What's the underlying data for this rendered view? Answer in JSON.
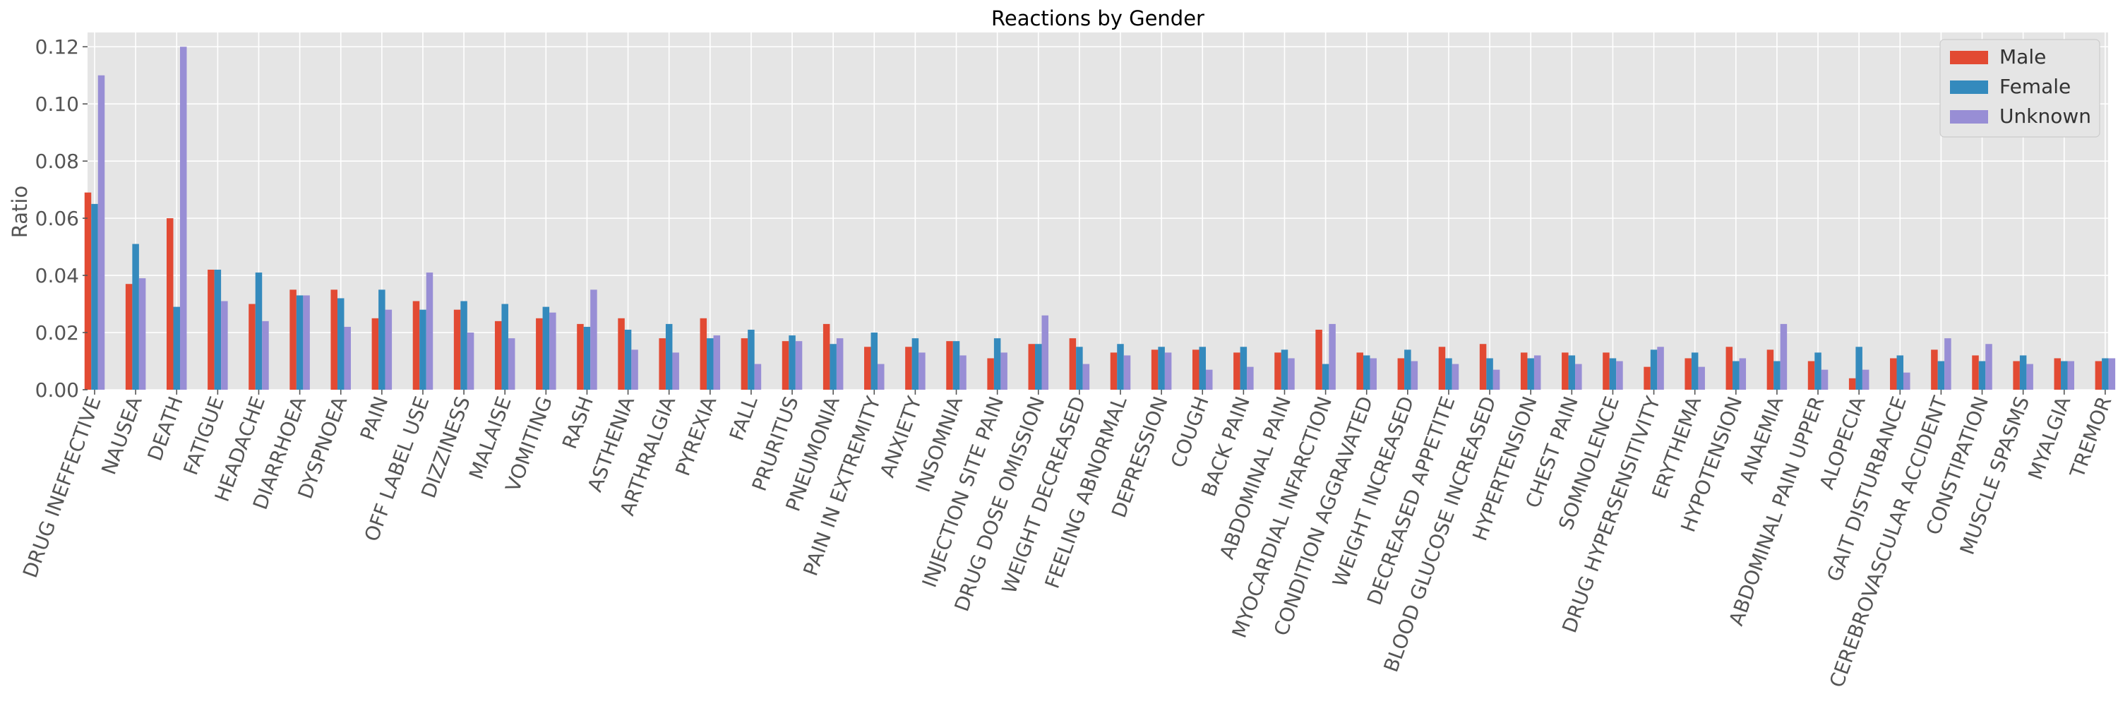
{
  "chart_data": {
    "type": "bar",
    "title": "Reactions by Gender",
    "xlabel": "",
    "ylabel": "Ratio",
    "ylim": [
      0,
      0.125
    ],
    "yticks": [
      0.0,
      0.02,
      0.04,
      0.06,
      0.08,
      0.1,
      0.12
    ],
    "ytick_labels": [
      "0.00",
      "0.02",
      "0.04",
      "0.06",
      "0.08",
      "0.10",
      "0.12"
    ],
    "grid": true,
    "legend_position": "top-right",
    "categories": [
      "DRUG INEFFECTIVE",
      "NAUSEA",
      "DEATH",
      "FATIGUE",
      "HEADACHE",
      "DIARRHOEA",
      "DYSPNOEA",
      "PAIN",
      "OFF LABEL USE",
      "DIZZINESS",
      "MALAISE",
      "VOMITING",
      "RASH",
      "ASTHENIA",
      "ARTHRALGIA",
      "PYREXIA",
      "FALL",
      "PRURITUS",
      "PNEUMONIA",
      "PAIN IN EXTREMITY",
      "ANXIETY",
      "INSOMNIA",
      "INJECTION SITE PAIN",
      "DRUG DOSE OMISSION",
      "WEIGHT DECREASED",
      "FEELING ABNORMAL",
      "DEPRESSION",
      "COUGH",
      "BACK PAIN",
      "ABDOMINAL PAIN",
      "MYOCARDIAL INFARCTION",
      "CONDITION AGGRAVATED",
      "WEIGHT INCREASED",
      "DECREASED APPETITE",
      "BLOOD GLUCOSE INCREASED",
      "HYPERTENSION",
      "CHEST PAIN",
      "SOMNOLENCE",
      "DRUG HYPERSENSITIVITY",
      "ERYTHEMA",
      "HYPOTENSION",
      "ANAEMIA",
      "ABDOMINAL PAIN UPPER",
      "ALOPECIA",
      "GAIT DISTURBANCE",
      "CEREBROVASCULAR ACCIDENT",
      "CONSTIPATION",
      "MUSCLE SPASMS",
      "MYALGIA",
      "TREMOR"
    ],
    "series": [
      {
        "name": "Male",
        "color": "#E24A33",
        "values": [
          0.069,
          0.037,
          0.06,
          0.042,
          0.03,
          0.035,
          0.035,
          0.025,
          0.031,
          0.028,
          0.024,
          0.025,
          0.023,
          0.025,
          0.018,
          0.025,
          0.018,
          0.017,
          0.023,
          0.015,
          0.015,
          0.017,
          0.011,
          0.016,
          0.018,
          0.013,
          0.014,
          0.014,
          0.013,
          0.013,
          0.021,
          0.013,
          0.011,
          0.015,
          0.016,
          0.013,
          0.013,
          0.013,
          0.008,
          0.011,
          0.015,
          0.014,
          0.01,
          0.004,
          0.011,
          0.014,
          0.012,
          0.01,
          0.011,
          0.01
        ]
      },
      {
        "name": "Female",
        "color": "#348ABD",
        "values": [
          0.065,
          0.051,
          0.029,
          0.042,
          0.041,
          0.033,
          0.032,
          0.035,
          0.028,
          0.031,
          0.03,
          0.029,
          0.022,
          0.021,
          0.023,
          0.018,
          0.021,
          0.019,
          0.016,
          0.02,
          0.018,
          0.017,
          0.018,
          0.016,
          0.015,
          0.016,
          0.015,
          0.015,
          0.015,
          0.014,
          0.009,
          0.012,
          0.014,
          0.011,
          0.011,
          0.011,
          0.012,
          0.011,
          0.014,
          0.013,
          0.01,
          0.01,
          0.013,
          0.015,
          0.012,
          0.01,
          0.01,
          0.012,
          0.01,
          0.011
        ]
      },
      {
        "name": "Unknown",
        "color": "#988ED5",
        "values": [
          0.11,
          0.039,
          0.12,
          0.031,
          0.024,
          0.033,
          0.022,
          0.028,
          0.041,
          0.02,
          0.018,
          0.027,
          0.035,
          0.014,
          0.013,
          0.019,
          0.009,
          0.017,
          0.018,
          0.009,
          0.013,
          0.012,
          0.013,
          0.026,
          0.009,
          0.012,
          0.013,
          0.007,
          0.008,
          0.011,
          0.023,
          0.011,
          0.01,
          0.009,
          0.007,
          0.012,
          0.009,
          0.01,
          0.015,
          0.008,
          0.011,
          0.023,
          0.007,
          0.007,
          0.006,
          0.018,
          0.016,
          0.009,
          0.01,
          0.011
        ]
      }
    ]
  }
}
